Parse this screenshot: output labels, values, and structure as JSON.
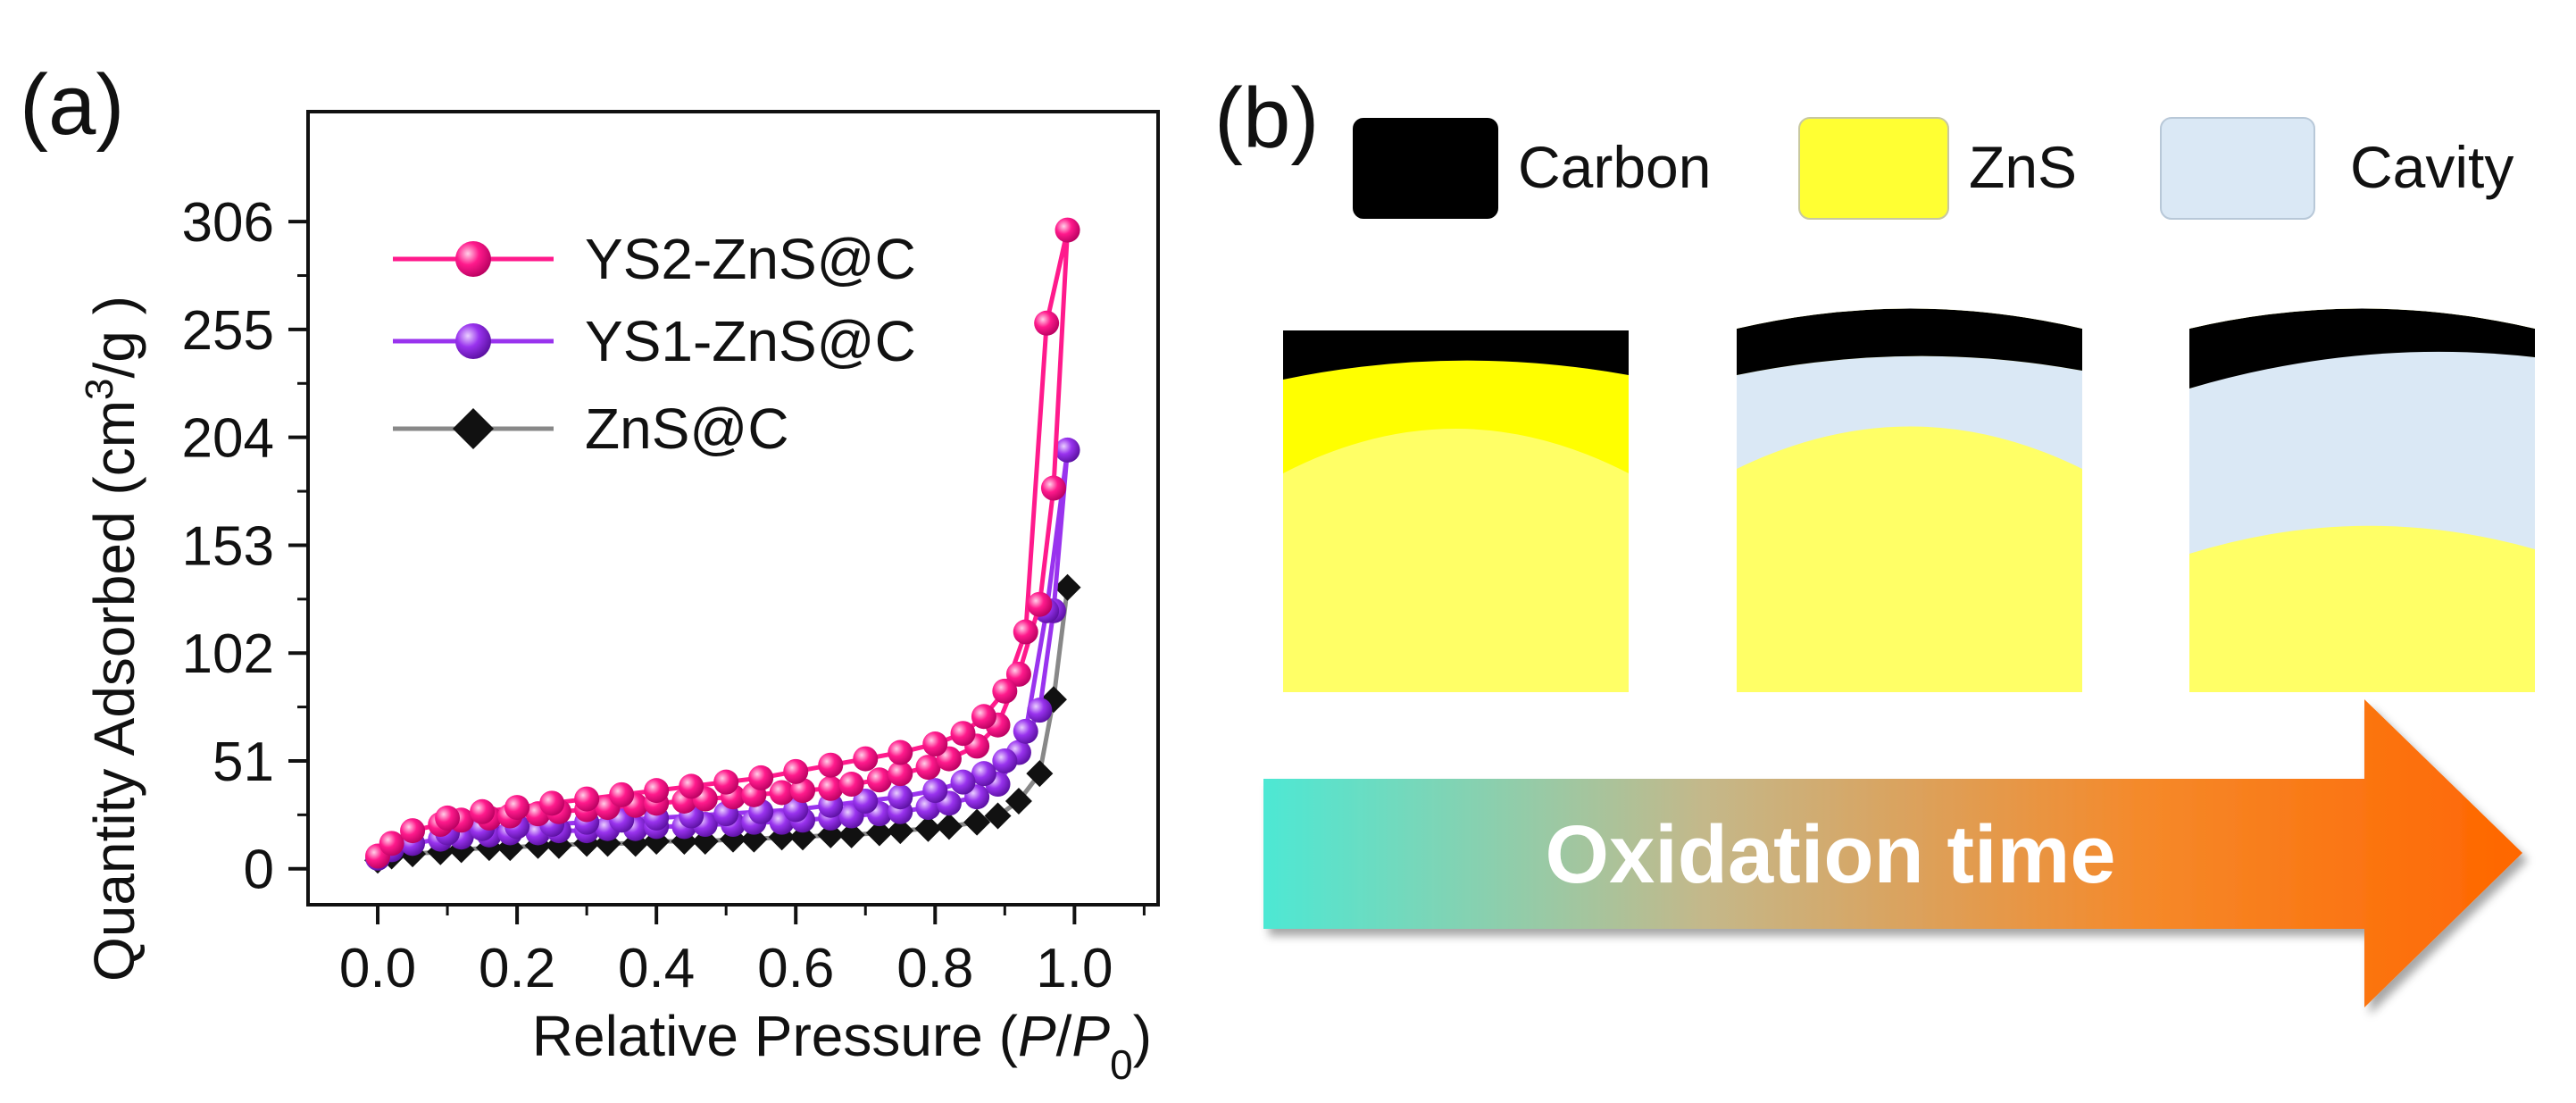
{
  "panel_a": {
    "label": "(a)",
    "chart_data": {
      "type": "line",
      "ylabel": "Quantity Adsorbed (cm³/g )",
      "ylabel_main": "Quantity Adsorbed (cm",
      "ylabel_sup": "3",
      "ylabel_tail": "/g )",
      "xlabel": "Relative Pressure (P/P0)",
      "xlabel_main": "Relative Pressure (",
      "xlabel_p": "P",
      "xlabel_slash": "/",
      "xlabel_p0": "P",
      "xlabel_sub": "0",
      "xlabel_close": ")",
      "xlim": [
        -0.1,
        1.12
      ],
      "ylim": [
        -17,
        358
      ],
      "xticks": [
        0.0,
        0.2,
        0.4,
        0.6,
        0.8,
        1.0
      ],
      "xtick_labels": [
        "0.0",
        "0.2",
        "0.4",
        "0.6",
        "0.8",
        "1.0"
      ],
      "yticks": [
        0,
        51,
        102,
        153,
        204,
        255,
        306
      ],
      "ytick_labels": [
        "0",
        "51",
        "102",
        "153",
        "204",
        "255",
        "306"
      ],
      "legend_position": "top-left",
      "series": [
        {
          "name": "YS2-ZnS@C",
          "color": "#ff1a8c",
          "marker": "circle",
          "x": [
            0.0,
            0.02,
            0.05,
            0.09,
            0.12,
            0.16,
            0.19,
            0.23,
            0.26,
            0.3,
            0.33,
            0.37,
            0.4,
            0.44,
            0.47,
            0.51,
            0.54,
            0.58,
            0.61,
            0.65,
            0.68,
            0.72,
            0.75,
            0.79,
            0.82,
            0.86,
            0.89,
            0.92,
            0.95,
            0.97,
            0.99,
            0.96,
            0.93,
            0.9,
            0.87,
            0.84,
            0.8,
            0.75,
            0.7,
            0.65,
            0.6,
            0.55,
            0.5,
            0.45,
            0.4,
            0.35,
            0.3,
            0.25,
            0.2,
            0.15,
            0.1
          ],
          "y": [
            6,
            12,
            18,
            21,
            23,
            24,
            25,
            26,
            27,
            28,
            29,
            30,
            31,
            32,
            33,
            34,
            35,
            36,
            37,
            38,
            40,
            42,
            45,
            48,
            52,
            58,
            68,
            92,
            125,
            180,
            302,
            258,
            112,
            84,
            72,
            64,
            59,
            55,
            52,
            49,
            46,
            43,
            41,
            39,
            37,
            35,
            33,
            31,
            29,
            27,
            24
          ]
        },
        {
          "name": "YS1-ZnS@C",
          "color": "#9933ee",
          "marker": "circle",
          "x": [
            0.0,
            0.02,
            0.05,
            0.09,
            0.12,
            0.16,
            0.19,
            0.23,
            0.26,
            0.3,
            0.33,
            0.37,
            0.4,
            0.44,
            0.47,
            0.51,
            0.54,
            0.58,
            0.61,
            0.65,
            0.68,
            0.72,
            0.75,
            0.79,
            0.82,
            0.86,
            0.89,
            0.92,
            0.95,
            0.97,
            0.99,
            0.96,
            0.93,
            0.9,
            0.87,
            0.84,
            0.8,
            0.75,
            0.7,
            0.65,
            0.6,
            0.55,
            0.5,
            0.45,
            0.4,
            0.35,
            0.3,
            0.25,
            0.2,
            0.15,
            0.1
          ],
          "y": [
            5,
            9,
            12,
            14,
            15,
            16,
            17,
            17,
            18,
            18,
            19,
            19,
            20,
            20,
            21,
            21,
            22,
            22,
            23,
            24,
            25,
            26,
            27,
            29,
            31,
            34,
            40,
            55,
            75,
            122,
            198,
            122,
            65,
            51,
            45,
            41,
            37,
            34,
            32,
            30,
            28,
            27,
            26,
            25,
            24,
            23,
            22,
            21,
            20,
            19,
            17
          ]
        },
        {
          "name": "ZnS@C",
          "color": "#111111",
          "line_color": "#888888",
          "marker": "diamond",
          "x": [
            0.0,
            0.02,
            0.05,
            0.09,
            0.12,
            0.16,
            0.19,
            0.23,
            0.26,
            0.3,
            0.33,
            0.37,
            0.4,
            0.44,
            0.47,
            0.51,
            0.54,
            0.58,
            0.61,
            0.65,
            0.68,
            0.72,
            0.75,
            0.79,
            0.82,
            0.86,
            0.89,
            0.92,
            0.95,
            0.97,
            0.99
          ],
          "y": [
            4,
            6,
            7,
            8,
            9,
            10,
            10,
            11,
            11,
            12,
            12,
            12,
            13,
            13,
            13,
            14,
            14,
            15,
            15,
            16,
            16,
            17,
            18,
            19,
            20,
            22,
            25,
            32,
            45,
            80,
            133
          ]
        }
      ]
    }
  },
  "panel_b": {
    "label": "(b)",
    "legend": [
      {
        "label": "Carbon",
        "color": "#000000"
      },
      {
        "label": "ZnS",
        "color": "#ffff33"
      },
      {
        "label": "Cavity",
        "color": "#dae8f5"
      }
    ],
    "arrow_label": "Oxidation time",
    "arrow_gradient": [
      "#4de8d4",
      "#c4b88a",
      "#f5892a",
      "#ff6600"
    ]
  }
}
